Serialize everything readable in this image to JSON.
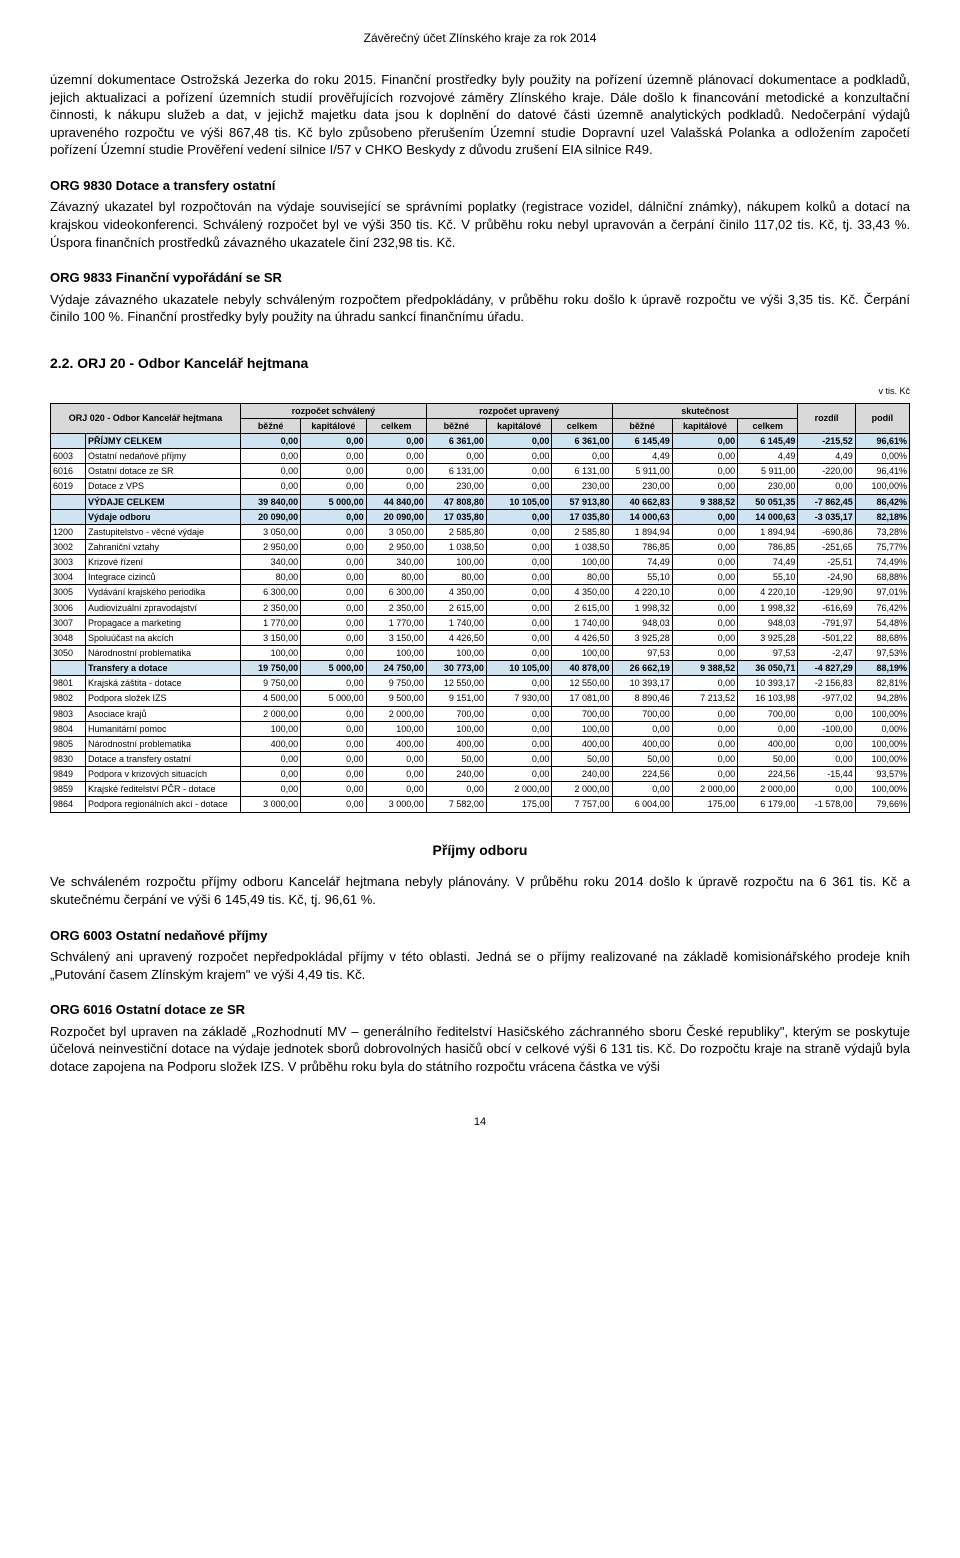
{
  "header": "Závěrečný účet Zlínského kraje za rok 2014",
  "intro_paragraph": "územní dokumentace Ostrožská Jezerka do roku 2015. Finanční prostředky byly použity na pořízení územně plánovací dokumentace a podkladů, jejich aktualizaci a pořízení územních studií prověřujících rozvojové záměry Zlínského kraje. Dále došlo k financování metodické a konzultační činnosti, k nákupu služeb a dat, v jejichž majetku data jsou k doplnění do datové části územně analytických podkladů. Nedočerpání výdajů upraveného rozpočtu ve výši 867,48 tis. Kč bylo způsobeno přerušením Územní studie Dopravní uzel Valašská Polanka a odložením započetí pořízení Územní studie Prověření vedení silnice I/57 v CHKO Beskydy z důvodu zrušení EIA silnice R49.",
  "sections": [
    {
      "title": "ORG 9830 Dotace a transfery ostatní",
      "body": "Závazný ukazatel byl rozpočtován na výdaje související se správními poplatky (registrace vozidel, dálniční známky), nákupem kolků a dotací na krajskou videokonferenci. Schválený rozpočet byl ve výši 350 tis. Kč. V průběhu roku nebyl upravován a čerpání činilo 117,02 tis. Kč, tj. 33,43 %. Úspora finančních prostředků závazného ukazatele činí 232,98 tis. Kč."
    },
    {
      "title": "ORG 9833 Finanční vypořádání se SR",
      "body": "Výdaje závazného ukazatele nebyly schváleným rozpočtem předpokládány, v průběhu roku došlo k úpravě rozpočtu ve výši 3,35 tis. Kč. Čerpání činilo 100 %. Finanční prostředky byly použity na  úhradu sankcí finančnímu úřadu."
    }
  ],
  "orj_heading": "2.2. ORJ  20 - Odbor Kancelář hejtmana",
  "table": {
    "unit": "v tis. Kč",
    "title_left": "ORJ 020 - Odbor Kancelář hejtmana",
    "header_groups": [
      "rozpočet schválený",
      "rozpočet upravený",
      "skutečnost"
    ],
    "header_sub": [
      "běžné",
      "kapitálové",
      "celkem",
      "běžné",
      "kapitálové",
      "celkem",
      "běžné",
      "kapitálové",
      "celkem",
      "rozdíl",
      "podíl"
    ],
    "rows": [
      {
        "group": true,
        "code": "",
        "label": "PŘÍJMY CELKEM",
        "v": [
          "0,00",
          "0,00",
          "0,00",
          "6 361,00",
          "0,00",
          "6 361,00",
          "6 145,49",
          "0,00",
          "6 145,49",
          "-215,52",
          "96,61%"
        ]
      },
      {
        "code": "6003",
        "label": "Ostatní nedaňové příjmy",
        "v": [
          "0,00",
          "0,00",
          "0,00",
          "0,00",
          "0,00",
          "0,00",
          "4,49",
          "0,00",
          "4,49",
          "4,49",
          "0,00%"
        ]
      },
      {
        "code": "6016",
        "label": "Ostatní dotace ze SR",
        "v": [
          "0,00",
          "0,00",
          "0,00",
          "6 131,00",
          "0,00",
          "6 131,00",
          "5 911,00",
          "0,00",
          "5 911,00",
          "-220,00",
          "96,41%"
        ]
      },
      {
        "code": "6019",
        "label": "Dotace z VPS",
        "v": [
          "0,00",
          "0,00",
          "0,00",
          "230,00",
          "0,00",
          "230,00",
          "230,00",
          "0,00",
          "230,00",
          "0,00",
          "100,00%"
        ]
      },
      {
        "group": true,
        "code": "",
        "label": "VÝDAJE CELKEM",
        "v": [
          "39 840,00",
          "5 000,00",
          "44 840,00",
          "47 808,80",
          "10 105,00",
          "57 913,80",
          "40 662,83",
          "9 388,52",
          "50 051,35",
          "-7 862,45",
          "86,42%"
        ]
      },
      {
        "group": true,
        "code": "",
        "label": "Výdaje odboru",
        "v": [
          "20 090,00",
          "0,00",
          "20 090,00",
          "17 035,80",
          "0,00",
          "17 035,80",
          "14 000,63",
          "0,00",
          "14 000,63",
          "-3 035,17",
          "82,18%"
        ]
      },
      {
        "code": "1200",
        "label": "Zastupitelstvo - věcné výdaje",
        "v": [
          "3 050,00",
          "0,00",
          "3 050,00",
          "2 585,80",
          "0,00",
          "2 585,80",
          "1 894,94",
          "0,00",
          "1 894,94",
          "-690,86",
          "73,28%"
        ]
      },
      {
        "code": "3002",
        "label": "Zahraniční vztahy",
        "v": [
          "2 950,00",
          "0,00",
          "2 950,00",
          "1 038,50",
          "0,00",
          "1 038,50",
          "786,85",
          "0,00",
          "786,85",
          "-251,65",
          "75,77%"
        ]
      },
      {
        "code": "3003",
        "label": "Krizové řízení",
        "v": [
          "340,00",
          "0,00",
          "340,00",
          "100,00",
          "0,00",
          "100,00",
          "74,49",
          "0,00",
          "74,49",
          "-25,51",
          "74,49%"
        ]
      },
      {
        "code": "3004",
        "label": "Integrace cizinců",
        "v": [
          "80,00",
          "0,00",
          "80,00",
          "80,00",
          "0,00",
          "80,00",
          "55,10",
          "0,00",
          "55,10",
          "-24,90",
          "68,88%"
        ]
      },
      {
        "code": "3005",
        "label": "Vydávání krajského periodika",
        "v": [
          "6 300,00",
          "0,00",
          "6 300,00",
          "4 350,00",
          "0,00",
          "4 350,00",
          "4 220,10",
          "0,00",
          "4 220,10",
          "-129,90",
          "97,01%"
        ]
      },
      {
        "code": "3006",
        "label": "Audiovizuální zpravodajství",
        "v": [
          "2 350,00",
          "0,00",
          "2 350,00",
          "2 615,00",
          "0,00",
          "2 615,00",
          "1 998,32",
          "0,00",
          "1 998,32",
          "-616,69",
          "76,42%"
        ]
      },
      {
        "code": "3007",
        "label": "Propagace a marketing",
        "v": [
          "1 770,00",
          "0,00",
          "1 770,00",
          "1 740,00",
          "0,00",
          "1 740,00",
          "948,03",
          "0,00",
          "948,03",
          "-791,97",
          "54,48%"
        ]
      },
      {
        "code": "3048",
        "label": "Spoluúčast na akcích",
        "v": [
          "3 150,00",
          "0,00",
          "3 150,00",
          "4 426,50",
          "0,00",
          "4 426,50",
          "3 925,28",
          "0,00",
          "3 925,28",
          "-501,22",
          "88,68%"
        ]
      },
      {
        "code": "3050",
        "label": "Národnostní problematika",
        "v": [
          "100,00",
          "0,00",
          "100,00",
          "100,00",
          "0,00",
          "100,00",
          "97,53",
          "0,00",
          "97,53",
          "-2,47",
          "97,53%"
        ]
      },
      {
        "group": true,
        "code": "",
        "label": "Transfery a dotace",
        "v": [
          "19 750,00",
          "5 000,00",
          "24 750,00",
          "30 773,00",
          "10 105,00",
          "40 878,00",
          "26 662,19",
          "9 388,52",
          "36 050,71",
          "-4 827,29",
          "88,19%"
        ]
      },
      {
        "code": "9801",
        "label": "Krajská záštita - dotace",
        "v": [
          "9 750,00",
          "0,00",
          "9 750,00",
          "12 550,00",
          "0,00",
          "12 550,00",
          "10 393,17",
          "0,00",
          "10 393,17",
          "-2 156,83",
          "82,81%"
        ]
      },
      {
        "code": "9802",
        "label": "Podpora složek IZS",
        "v": [
          "4 500,00",
          "5 000,00",
          "9 500,00",
          "9 151,00",
          "7 930,00",
          "17 081,00",
          "8 890,46",
          "7 213,52",
          "16 103,98",
          "-977,02",
          "94,28%"
        ]
      },
      {
        "code": "9803",
        "label": "Asociace krajů",
        "v": [
          "2 000,00",
          "0,00",
          "2 000,00",
          "700,00",
          "0,00",
          "700,00",
          "700,00",
          "0,00",
          "700,00",
          "0,00",
          "100,00%"
        ]
      },
      {
        "code": "9804",
        "label": "Humanitární pomoc",
        "v": [
          "100,00",
          "0,00",
          "100,00",
          "100,00",
          "0,00",
          "100,00",
          "0,00",
          "0,00",
          "0,00",
          "-100,00",
          "0,00%"
        ]
      },
      {
        "code": "9805",
        "label": "Národnostní problematika",
        "v": [
          "400,00",
          "0,00",
          "400,00",
          "400,00",
          "0,00",
          "400,00",
          "400,00",
          "0,00",
          "400,00",
          "0,00",
          "100,00%"
        ]
      },
      {
        "code": "9830",
        "label": "Dotace a transfery ostatní",
        "v": [
          "0,00",
          "0,00",
          "0,00",
          "50,00",
          "0,00",
          "50,00",
          "50,00",
          "0,00",
          "50,00",
          "0,00",
          "100,00%"
        ]
      },
      {
        "code": "9849",
        "label": "Podpora v krizových situacích",
        "v": [
          "0,00",
          "0,00",
          "0,00",
          "240,00",
          "0,00",
          "240,00",
          "224,56",
          "0,00",
          "224,56",
          "-15,44",
          "93,57%"
        ]
      },
      {
        "code": "9859",
        "label": "Krajské ředitelství PČR - dotace",
        "v": [
          "0,00",
          "0,00",
          "0,00",
          "0,00",
          "2 000,00",
          "2 000,00",
          "0,00",
          "2 000,00",
          "2 000,00",
          "0,00",
          "100,00%"
        ]
      },
      {
        "code": "9864",
        "label": "Podpora regionálních akcí - dotace",
        "v": [
          "3 000,00",
          "0,00",
          "3 000,00",
          "7 582,00",
          "175,00",
          "7 757,00",
          "6 004,00",
          "175,00",
          "6 179,00",
          "-1 578,00",
          "79,66%"
        ]
      }
    ]
  },
  "income_heading": "Příjmy odboru",
  "income_intro": "Ve schváleném rozpočtu příjmy odboru Kancelář hejtmana nebyly plánovány. V průběhu roku 2014 došlo k úpravě rozpočtu na 6 361 tis. Kč a skutečnému čerpání ve výši 6 145,49 tis. Kč, tj. 96,61 %.",
  "income_sections": [
    {
      "title": "ORG 6003 Ostatní nedaňové příjmy",
      "body": "Schválený ani upravený rozpočet nepředpokládal příjmy v této oblasti. Jedná se o příjmy realizované na základě komisionářského prodeje knih „Putování časem Zlínským krajem\" ve výši 4,49 tis. Kč."
    },
    {
      "title": "ORG 6016 Ostatní dotace ze SR",
      "body": "Rozpočet byl upraven na základě „Rozhodnutí MV – generálního ředitelství Hasičského záchranného sboru České republiky\", kterým se poskytuje účelová neinvestiční dotace na výdaje jednotek sborů dobrovolných hasičů obcí v celkové výši 6 131 tis. Kč. Do rozpočtu kraje na straně výdajů byla dotace zapojena na Podporu složek IZS. V průběhu roku byla do státního rozpočtu vrácena částka ve výši"
    }
  ],
  "page_number": "14",
  "colors": {
    "header_bg": "#d9d9d9",
    "group_bg": "#d0e3f0"
  }
}
